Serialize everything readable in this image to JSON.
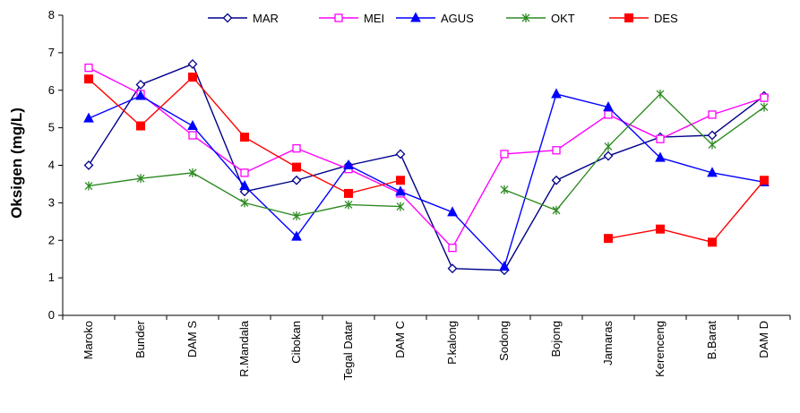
{
  "chart_data": {
    "type": "line",
    "title": "",
    "xlabel": "",
    "ylabel": "Oksigen (mg/L)",
    "ylim": [
      0,
      8
    ],
    "yticks": [
      "0",
      "1",
      "2",
      "3",
      "4",
      "5",
      "6",
      "7",
      "8"
    ],
    "grid": false,
    "legend_position": "top",
    "categories": [
      "Maroko",
      "Bunder",
      "DAM S",
      "R.Mandala",
      "Cibokan",
      "Tegal Datar",
      "DAM C",
      "P.kalong",
      "Sodong",
      "Bojong",
      "Jamaras",
      "Kerenceng",
      "B.Barat",
      "DAM D"
    ],
    "series": [
      {
        "name": "MAR",
        "color": "#00008b",
        "marker": "diamond-open",
        "values": [
          4.0,
          6.15,
          6.7,
          3.3,
          3.6,
          4.0,
          4.3,
          1.25,
          1.2,
          3.6,
          4.25,
          4.75,
          4.8,
          5.85
        ]
      },
      {
        "name": "MEI",
        "color": "#ff00ff",
        "marker": "square-open",
        "values": [
          6.6,
          5.9,
          4.8,
          3.8,
          4.45,
          3.9,
          3.25,
          1.8,
          4.3,
          4.4,
          5.35,
          4.7,
          5.35,
          5.8
        ]
      },
      {
        "name": "AGUS",
        "color": "#0000ff",
        "marker": "triangle",
        "values": [
          5.25,
          5.85,
          5.05,
          3.45,
          2.1,
          4.0,
          3.3,
          2.75,
          1.3,
          5.9,
          5.55,
          4.2,
          3.8,
          3.55
        ]
      },
      {
        "name": "OKT",
        "color": "#2e8b22",
        "marker": "star",
        "values": [
          3.45,
          3.65,
          3.8,
          3.0,
          2.65,
          2.95,
          2.9,
          null,
          3.35,
          2.8,
          4.5,
          5.9,
          4.55,
          5.55
        ]
      },
      {
        "name": "DES",
        "color": "#ff0000",
        "marker": "square",
        "values": [
          6.3,
          5.05,
          6.35,
          4.75,
          3.95,
          3.25,
          3.6,
          null,
          null,
          null,
          2.05,
          2.3,
          1.95,
          3.6
        ]
      }
    ]
  }
}
